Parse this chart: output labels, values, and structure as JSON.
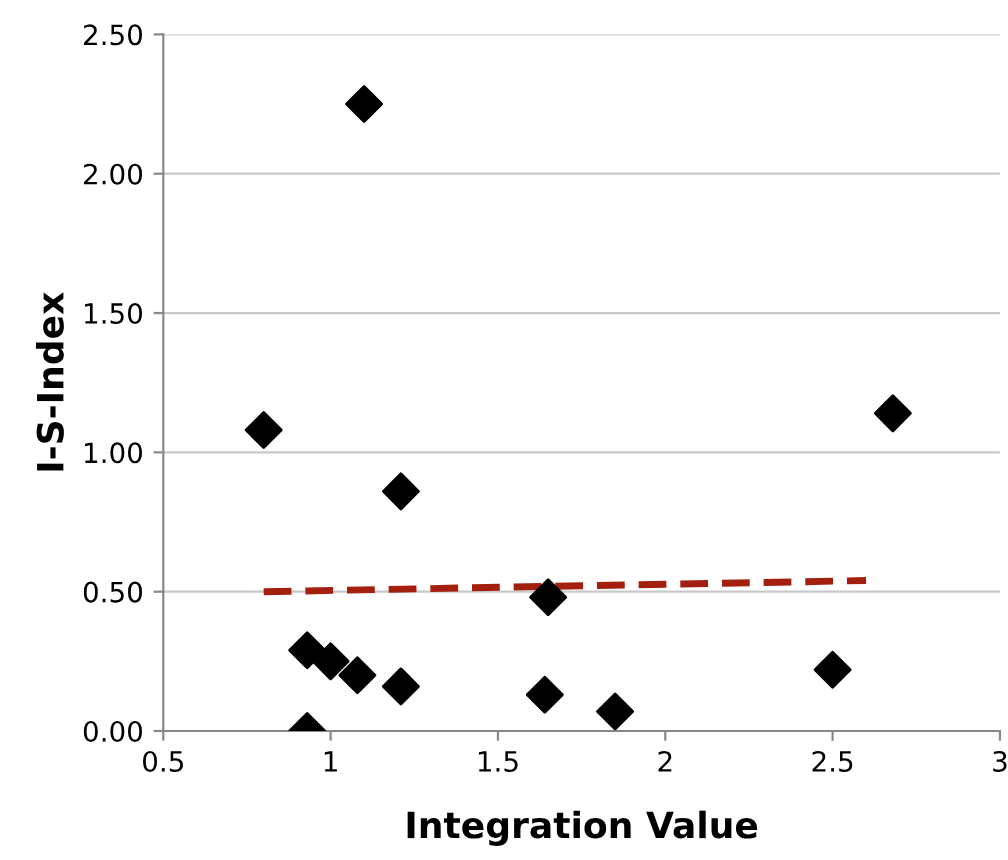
{
  "chart_data": {
    "type": "scatter",
    "xlabel": "Integration Value",
    "ylabel": "I-S-Index",
    "xlim": [
      0.5,
      3
    ],
    "xticks": [
      0.5,
      1,
      1.5,
      2,
      2.5,
      3
    ],
    "ylim": [
      0,
      2.5
    ],
    "yticks": [
      {
        "value": 0,
        "label": "0.00"
      },
      {
        "value": 0.5,
        "label": "0.50"
      },
      {
        "value": 1,
        "label": "1.00"
      },
      {
        "value": 1.5,
        "label": "1.50"
      },
      {
        "value": 2,
        "label": "2.00"
      },
      {
        "value": 2.5,
        "label": "2.50"
      }
    ],
    "grid": "y",
    "series": [
      {
        "color": "#000000",
        "marker": "diamond",
        "x": [
          0.8,
          0.93,
          0.93,
          1.0,
          1.08,
          1.1,
          1.21,
          1.21,
          1.64,
          1.65,
          1.85,
          2.5,
          2.68
        ],
        "values": [
          1.08,
          0.29,
          0.0,
          0.25,
          0.2,
          2.25,
          0.16,
          0.86,
          0.13,
          0.48,
          0.07,
          0.22,
          1.14
        ]
      },
      {
        "type": "line",
        "color": "#a31f0e",
        "line_style": "dashed",
        "marker": "none",
        "x": [
          0.8,
          2.6
        ],
        "values": [
          0.5,
          0.54
        ]
      }
    ]
  }
}
